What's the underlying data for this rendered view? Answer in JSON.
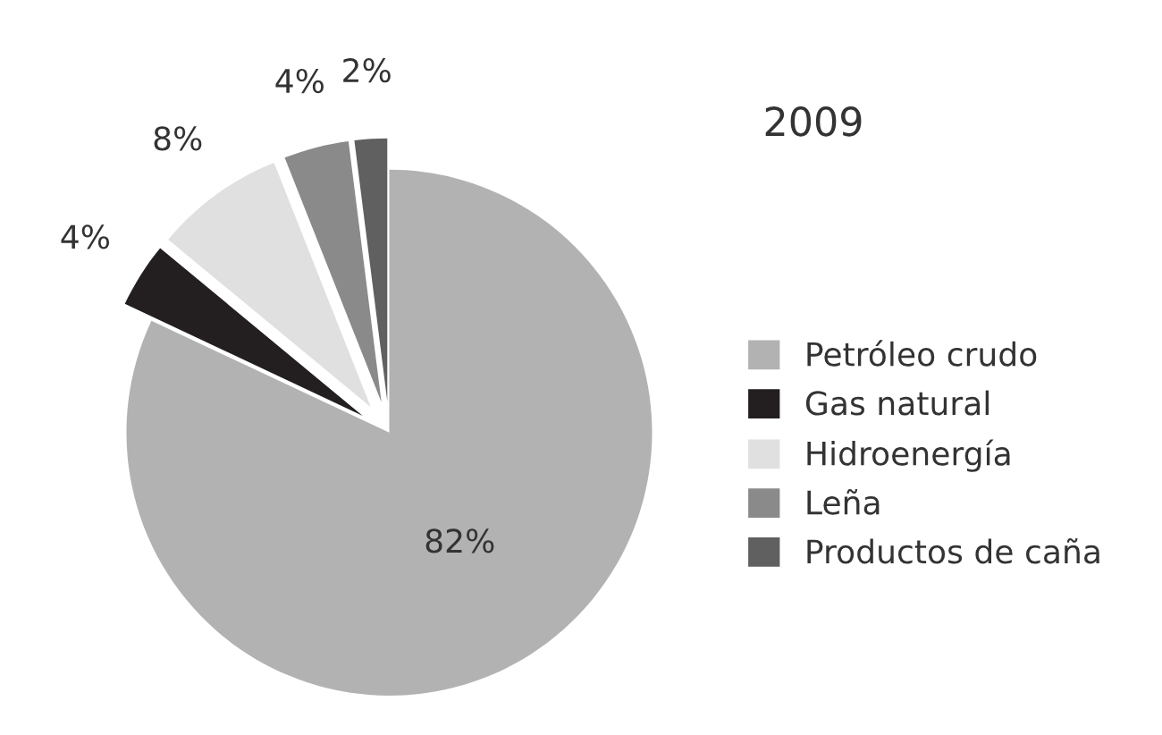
{
  "chart_data": {
    "type": "pie",
    "title": "2009",
    "categories": [
      "Petróleo crudo",
      "Gas natural",
      "Hidroenergía",
      "Leña",
      "Productos de caña"
    ],
    "values": [
      82,
      4,
      8,
      4,
      2
    ],
    "colors": [
      "#b2b2b2",
      "#231f20",
      "#e0e0e0",
      "#8a8a8a",
      "#606060"
    ],
    "value_labels": [
      "82%",
      "4%",
      "8%",
      "4%",
      "2%"
    ],
    "legend": "right"
  }
}
